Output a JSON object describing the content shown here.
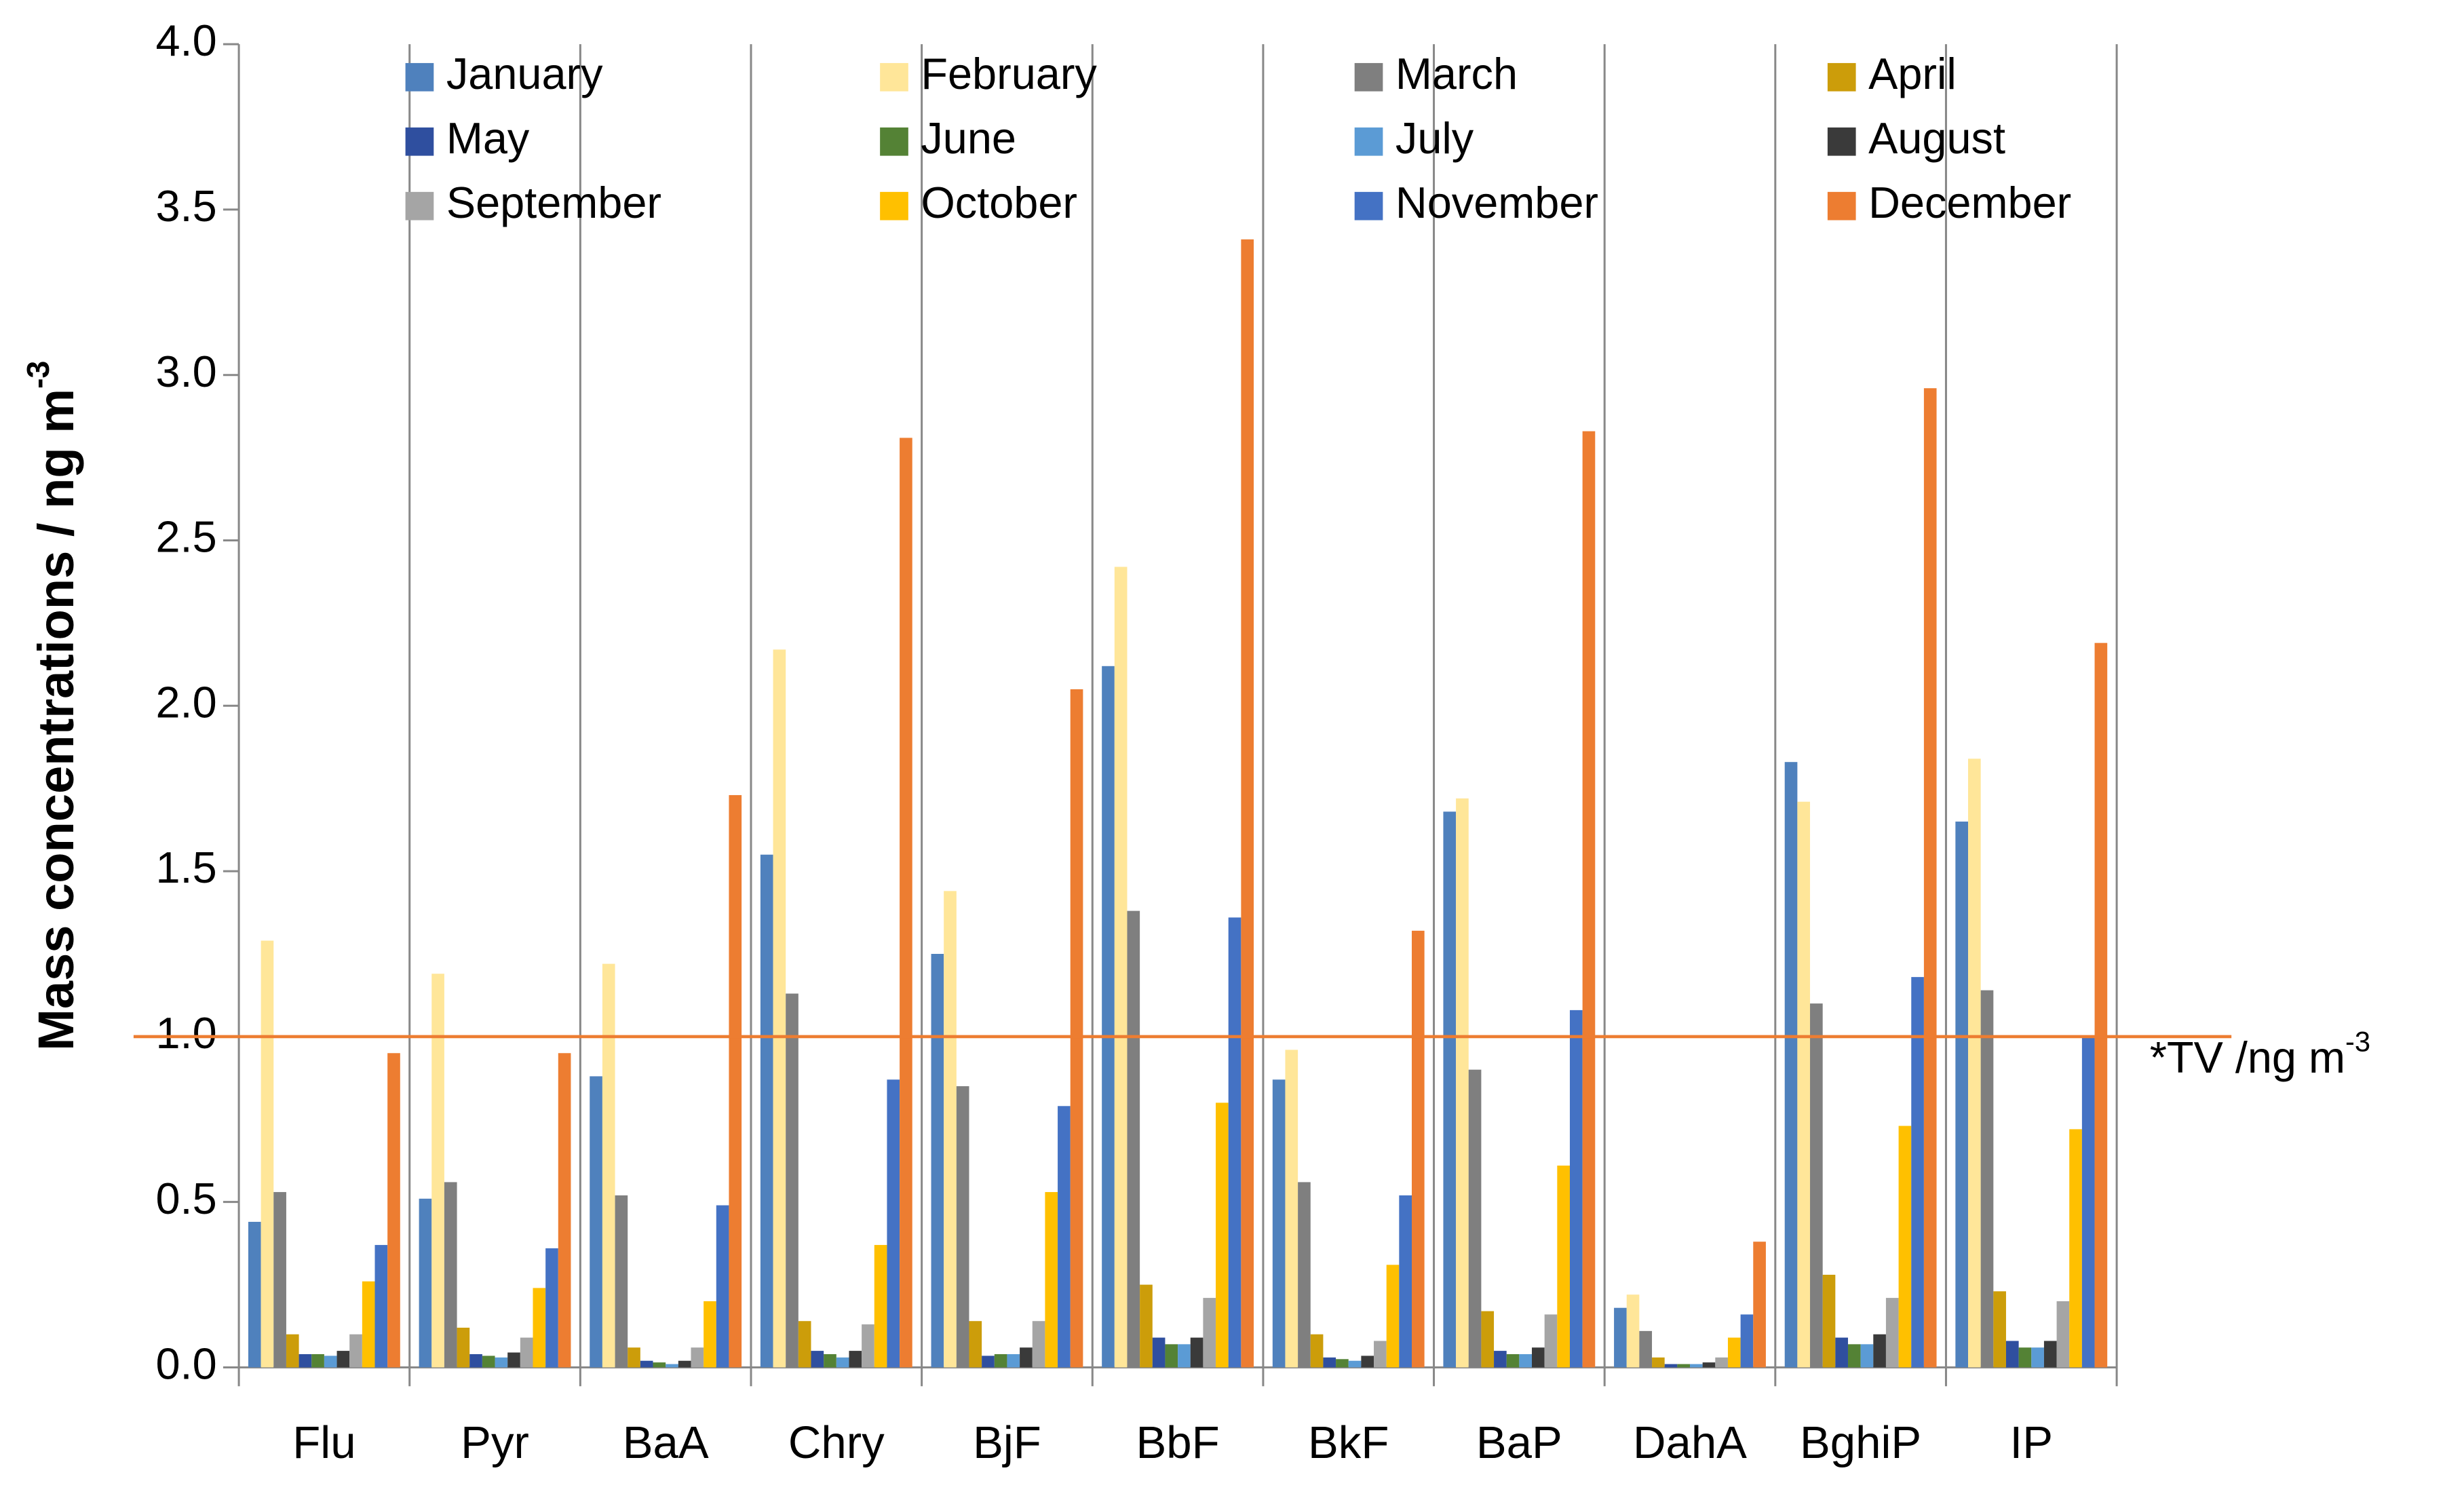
{
  "chart_data": {
    "type": "bar",
    "ylabel": {
      "text": "Mass concentrations / ng m",
      "sup": "-3"
    },
    "categories": [
      "Flu",
      "Pyr",
      "BaA",
      "Chry",
      "BjF",
      "BbF",
      "BkF",
      "BaP",
      "DahA",
      "BghiP",
      "IP"
    ],
    "series": [
      {
        "name": "January",
        "color": "#4f81bd",
        "values": [
          0.44,
          0.51,
          0.88,
          1.55,
          1.25,
          2.12,
          0.87,
          1.68,
          0.18,
          1.83,
          1.65
        ]
      },
      {
        "name": "February",
        "color": "#ffe699",
        "values": [
          1.29,
          1.19,
          1.22,
          2.17,
          1.44,
          2.42,
          0.96,
          1.72,
          0.22,
          1.71,
          1.84
        ]
      },
      {
        "name": "March",
        "color": "#7f7f7f",
        "values": [
          0.53,
          0.56,
          0.52,
          1.13,
          0.85,
          1.38,
          0.56,
          0.9,
          0.11,
          1.1,
          1.14
        ]
      },
      {
        "name": "April",
        "color": "#cc9d0a",
        "values": [
          0.1,
          0.12,
          0.06,
          0.14,
          0.14,
          0.25,
          0.1,
          0.17,
          0.03,
          0.28,
          0.23
        ]
      },
      {
        "name": "May",
        "color": "#2f4f9f",
        "values": [
          0.04,
          0.04,
          0.02,
          0.05,
          0.035,
          0.09,
          0.03,
          0.05,
          0.01,
          0.09,
          0.08
        ]
      },
      {
        "name": "June",
        "color": "#548235",
        "values": [
          0.04,
          0.035,
          0.015,
          0.04,
          0.04,
          0.07,
          0.025,
          0.04,
          0.01,
          0.07,
          0.06
        ]
      },
      {
        "name": "July",
        "color": "#5b9bd5",
        "values": [
          0.035,
          0.03,
          0.01,
          0.03,
          0.04,
          0.07,
          0.02,
          0.04,
          0.01,
          0.07,
          0.06
        ]
      },
      {
        "name": "August",
        "color": "#3a3a3a",
        "values": [
          0.05,
          0.045,
          0.02,
          0.05,
          0.06,
          0.09,
          0.035,
          0.06,
          0.015,
          0.1,
          0.08
        ]
      },
      {
        "name": "September",
        "color": "#a5a5a5",
        "values": [
          0.1,
          0.09,
          0.06,
          0.13,
          0.14,
          0.21,
          0.08,
          0.16,
          0.03,
          0.21,
          0.2
        ]
      },
      {
        "name": "October",
        "color": "#ffc000",
        "values": [
          0.26,
          0.24,
          0.2,
          0.37,
          0.53,
          0.8,
          0.31,
          0.61,
          0.09,
          0.73,
          0.72
        ]
      },
      {
        "name": "November",
        "color": "#4472c4",
        "values": [
          0.37,
          0.36,
          0.49,
          0.87,
          0.79,
          1.36,
          0.52,
          1.08,
          0.16,
          1.18,
          1.0
        ]
      },
      {
        "name": "December",
        "color": "#ed7d31",
        "values": [
          0.95,
          0.95,
          1.73,
          2.81,
          2.05,
          3.41,
          1.32,
          2.83,
          0.38,
          2.96,
          2.19
        ]
      }
    ],
    "ylim": [
      0,
      4
    ],
    "yticks": [
      {
        "value": 0,
        "label": "0.0"
      },
      {
        "value": 0.5,
        "label": "0.5"
      },
      {
        "value": 1,
        "label": "1.0"
      },
      {
        "value": 1.5,
        "label": "1.5"
      },
      {
        "value": 2,
        "label": "2.0"
      },
      {
        "value": 2.5,
        "label": "2.5"
      },
      {
        "value": 3,
        "label": "3.0"
      },
      {
        "value": 3.5,
        "label": "3.5"
      },
      {
        "value": 4,
        "label": "4.0"
      }
    ],
    "reference_line": {
      "value": 1,
      "color": "#ed7d31",
      "label": "*TV /ng m",
      "label_sup": "-3"
    },
    "legend_columns": 4
  }
}
